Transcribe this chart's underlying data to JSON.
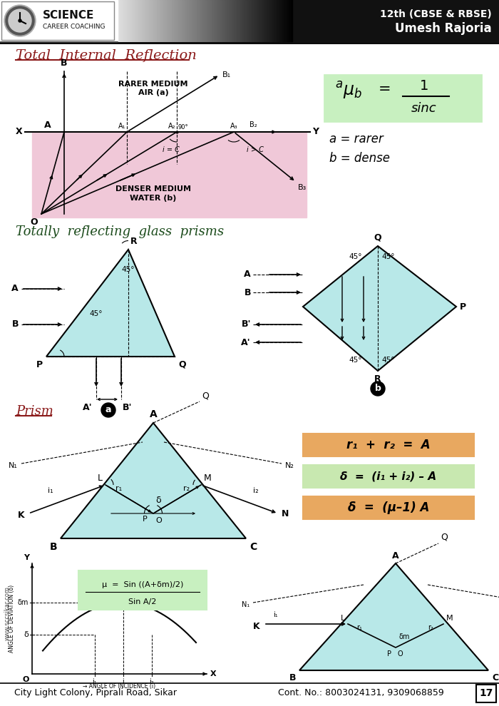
{
  "header_right1": "12th (CBSE & RBSE)",
  "header_right2": "Umesh Rajoria",
  "footer_left": "City Light Colony, Piprali Road, Sikar",
  "footer_right": "Cont. No.: 8003024131, 9309068859",
  "footer_num": "17",
  "bg_color": "#ffffff",
  "pink_fill": "#f0c8d8",
  "cyan_fill": "#b8e8e8",
  "green_box": "#c8f0c0",
  "orange_box1": "#e8a860",
  "orange_box2": "#c8e8b0",
  "orange_box3": "#e8a860",
  "header_bg": "#111111"
}
